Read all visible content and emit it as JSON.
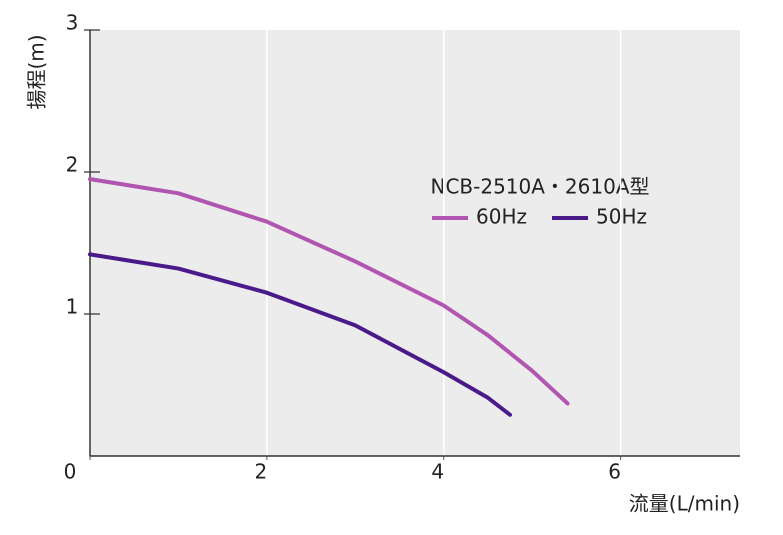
{
  "chart_data": {
    "type": "line",
    "x_label": "流量(L/min)",
    "y_label": "揚程(m)",
    "legend_title": "NCB-2510A・2610A型",
    "xlim": [
      0,
      7.35
    ],
    "ylim": [
      0,
      3
    ],
    "xticks": [
      0,
      2,
      4,
      6
    ],
    "yticks": [
      1,
      2,
      3
    ],
    "grid": true,
    "series": [
      {
        "name": "60Hz",
        "color": "#b055b0",
        "x": [
          0,
          1,
          2,
          3,
          4,
          4.5,
          5,
          5.4
        ],
        "values": [
          1.95,
          1.85,
          1.65,
          1.37,
          1.06,
          0.85,
          0.6,
          0.37
        ]
      },
      {
        "name": "50Hz",
        "color": "#4b1a8a",
        "x": [
          0,
          1,
          2,
          3,
          4,
          4.5,
          4.75
        ],
        "values": [
          1.42,
          1.32,
          1.15,
          0.92,
          0.59,
          0.41,
          0.29
        ]
      }
    ]
  }
}
